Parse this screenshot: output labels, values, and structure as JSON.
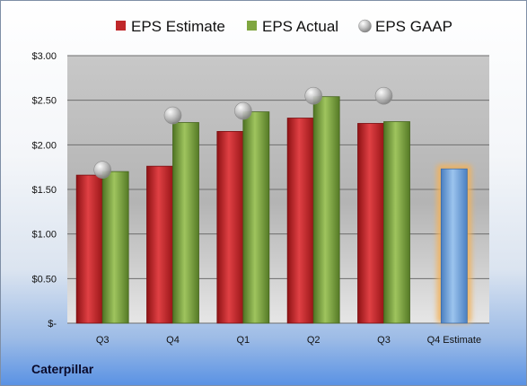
{
  "company": "Caterpillar",
  "chart_data": {
    "type": "bar",
    "categories": [
      "Q3",
      "Q4",
      "Q1",
      "Q2",
      "Q3",
      "Q4 Estimate"
    ],
    "series": [
      {
        "name": "EPS Estimate",
        "type": "bar",
        "color": "#c0282a",
        "values": [
          1.66,
          1.76,
          2.15,
          2.3,
          2.24,
          null
        ]
      },
      {
        "name": "EPS Actual",
        "type": "bar",
        "color": "#7fa640",
        "values": [
          1.7,
          2.25,
          2.37,
          2.54,
          2.26,
          null
        ]
      },
      {
        "name": "EPS GAAP",
        "type": "scatter",
        "color": "#a8a8a8",
        "values": [
          1.72,
          2.33,
          2.38,
          2.55,
          2.55,
          null
        ]
      },
      {
        "name": "",
        "type": "bar",
        "color": "#6a9ed8",
        "highlight": "#f2b25c",
        "values": [
          null,
          null,
          null,
          null,
          null,
          1.73
        ]
      }
    ],
    "y_ticks": [
      "$-",
      "$0.50",
      "$1.00",
      "$1.50",
      "$2.00",
      "$2.50",
      "$3.00"
    ],
    "ylim": [
      0,
      3
    ],
    "grid": true,
    "legend_position": "top"
  }
}
